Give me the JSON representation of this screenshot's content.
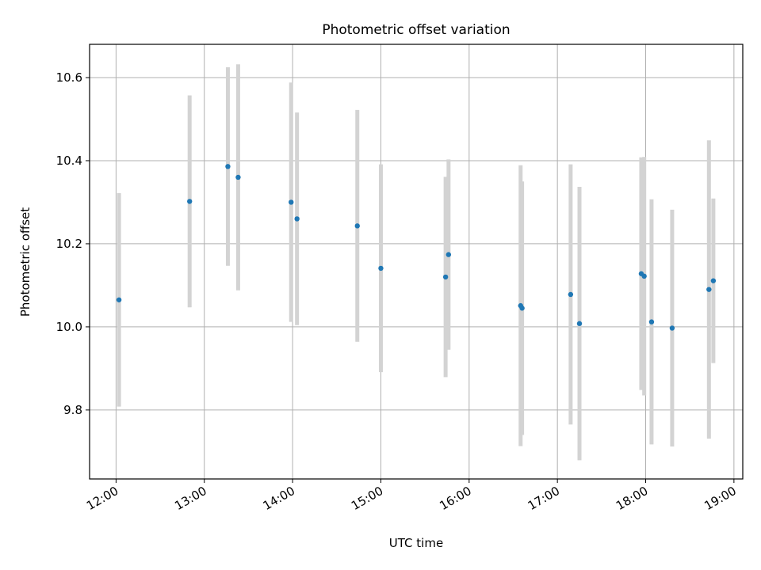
{
  "chart_data": {
    "type": "scatter",
    "title": "Photometric offset variation",
    "xlabel": "UTC time",
    "ylabel": "Photometric offset",
    "x_axis_kind": "time",
    "xlim": [
      "11:42",
      "19:06"
    ],
    "ylim": [
      9.634,
      10.68
    ],
    "xticks": [
      "12:00",
      "13:00",
      "14:00",
      "15:00",
      "16:00",
      "17:00",
      "18:00",
      "19:00"
    ],
    "yticks": [
      9.8,
      10.0,
      10.2,
      10.4,
      10.6
    ],
    "ytick_labels": [
      "9.8",
      "10.0",
      "10.2",
      "10.4",
      "10.6"
    ],
    "grid": true,
    "series": [
      {
        "marker_color": "#1f77b4",
        "errorbar_color": "#d3d3d3",
        "points": [
          {
            "x": "12:02",
            "y": 10.065,
            "err": 0.257
          },
          {
            "x": "12:50",
            "y": 10.302,
            "err": 0.255
          },
          {
            "x": "13:16",
            "y": 10.386,
            "err": 0.239
          },
          {
            "x": "13:23",
            "y": 10.36,
            "err": 0.272
          },
          {
            "x": "13:59",
            "y": 10.3,
            "err": 0.288
          },
          {
            "x": "14:03",
            "y": 10.26,
            "err": 0.256
          },
          {
            "x": "14:44",
            "y": 10.243,
            "err": 0.279
          },
          {
            "x": "15:00",
            "y": 10.141,
            "err": 0.25
          },
          {
            "x": "15:44",
            "y": 10.12,
            "err": 0.241
          },
          {
            "x": "15:46",
            "y": 10.174,
            "err": 0.229
          },
          {
            "x": "16:35",
            "y": 10.051,
            "err": 0.338
          },
          {
            "x": "16:36",
            "y": 10.045,
            "err": 0.305
          },
          {
            "x": "17:09",
            "y": 10.078,
            "err": 0.313
          },
          {
            "x": "17:15",
            "y": 10.008,
            "err": 0.329
          },
          {
            "x": "17:57",
            "y": 10.128,
            "err": 0.28
          },
          {
            "x": "17:59",
            "y": 10.122,
            "err": 0.287
          },
          {
            "x": "18:04",
            "y": 10.012,
            "err": 0.295
          },
          {
            "x": "18:18",
            "y": 9.997,
            "err": 0.285
          },
          {
            "x": "18:43",
            "y": 10.09,
            "err": 0.359
          },
          {
            "x": "18:46",
            "y": 10.111,
            "err": 0.198
          }
        ]
      }
    ]
  }
}
